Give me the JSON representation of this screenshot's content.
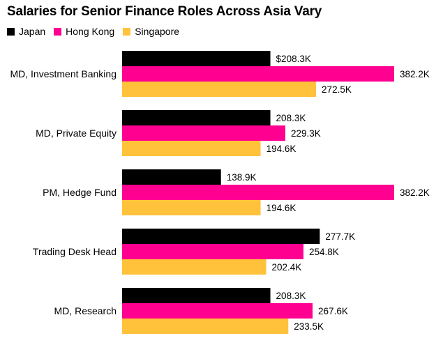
{
  "chart_data": {
    "type": "bar",
    "orientation": "horizontal",
    "title": "Salaries for Senior Finance Roles Across Asia Vary",
    "categories": [
      "MD, Investment Banking",
      "MD, Private Equity",
      "PM, Hedge Fund",
      "Trading Desk Head",
      "MD, Research"
    ],
    "series": [
      {
        "name": "Japan",
        "color": "#000000",
        "values": [
          208.3,
          208.3,
          138.9,
          277.7,
          208.3
        ],
        "labels": [
          "$208.3K",
          "208.3K",
          "138.9K",
          "277.7K",
          "208.3K"
        ]
      },
      {
        "name": "Hong Kong",
        "color": "#ff0090",
        "values": [
          382.2,
          229.3,
          382.2,
          254.8,
          267.6
        ],
        "labels": [
          "382.2K",
          "229.3K",
          "382.2K",
          "254.8K",
          "267.6K"
        ]
      },
      {
        "name": "Singapore",
        "color": "#ffc23a",
        "values": [
          272.5,
          194.6,
          194.6,
          202.4,
          233.5
        ],
        "labels": [
          "272.5K",
          "194.6K",
          "194.6K",
          "202.4K",
          "233.5K"
        ]
      }
    ],
    "xlim": [
      0,
      382.2
    ],
    "unit": "K",
    "legend_position": "top-left",
    "grid": false
  }
}
